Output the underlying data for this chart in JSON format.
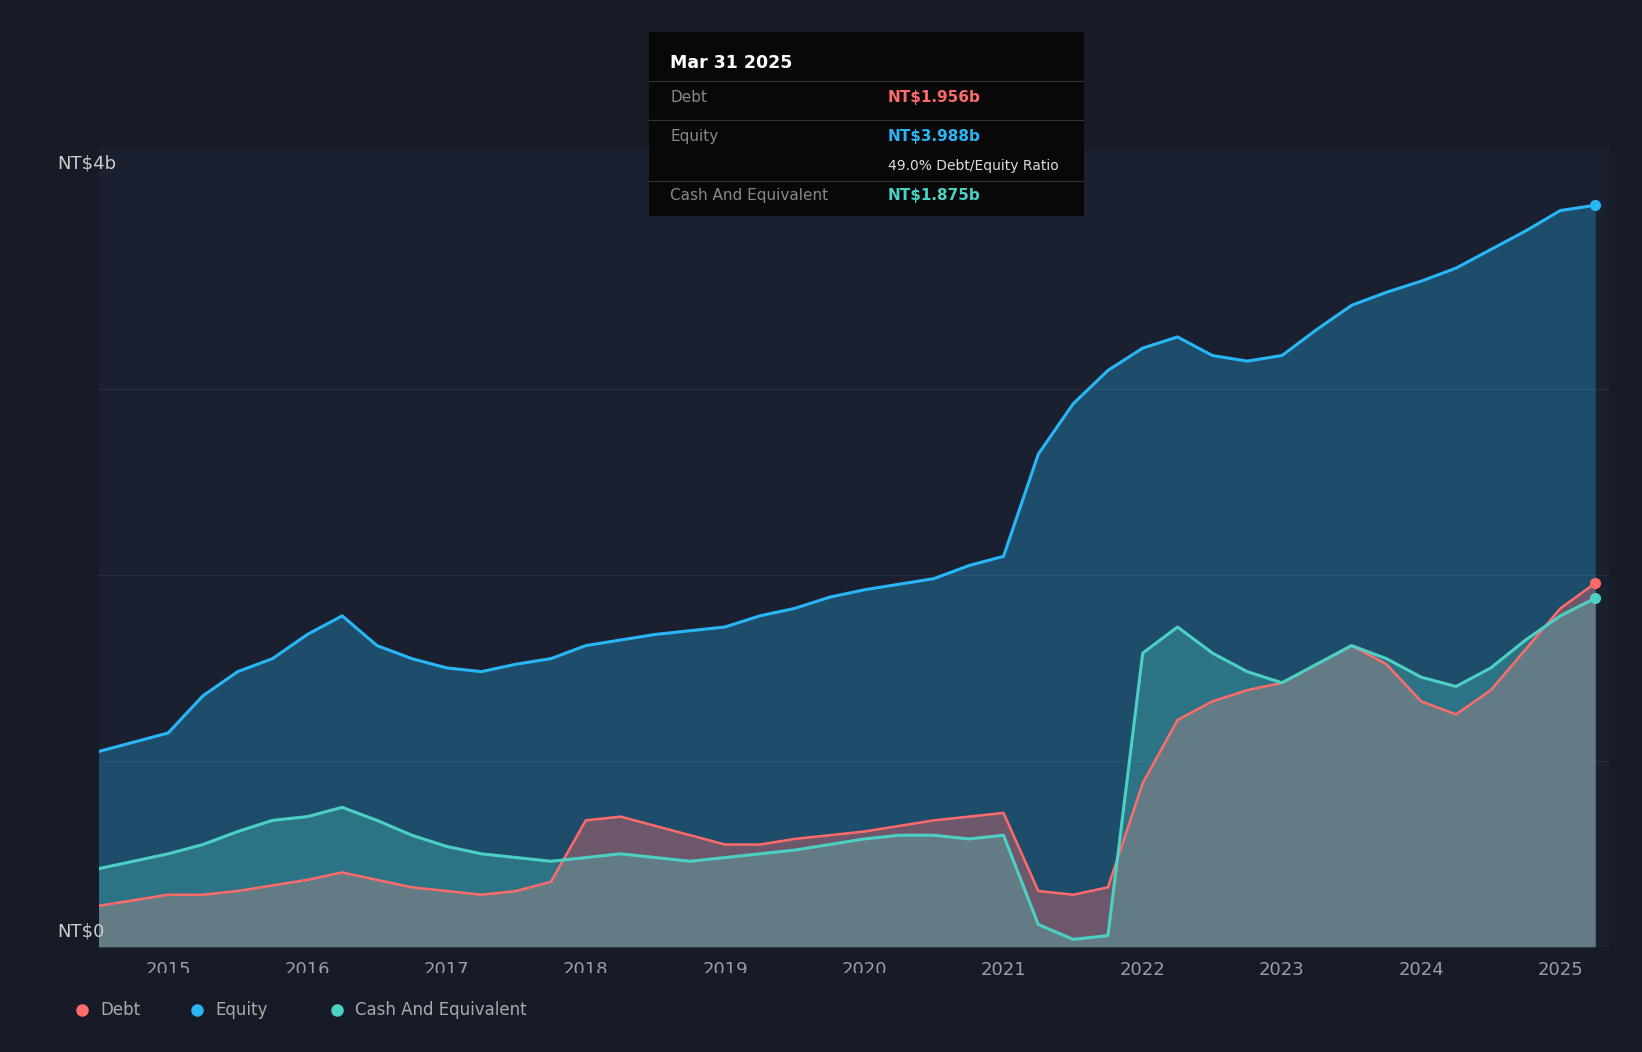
{
  "background_color": "#161b27",
  "plot_bg_color": "#1a2030",
  "ylabel_top": "NT$4b",
  "ylabel_bottom": "NT$0",
  "x_ticks": [
    2015,
    2016,
    2017,
    2018,
    2019,
    2020,
    2021,
    2022,
    2023,
    2024,
    2025
  ],
  "tooltip": {
    "date": "Mar 31 2025",
    "debt_label": "Debt",
    "debt_value": "NT$1.956b",
    "equity_label": "Equity",
    "equity_value": "NT$3.988b",
    "ratio_text": "49.0% Debt/Equity Ratio",
    "cash_label": "Cash And Equivalent",
    "cash_value": "NT$1.875b"
  },
  "debt_color": "#ff6b6b",
  "equity_color": "#29b6f6",
  "cash_color": "#4dd0c4",
  "legend": [
    {
      "label": "Debt",
      "color": "#ff6b6b"
    },
    {
      "label": "Equity",
      "color": "#29b6f6"
    },
    {
      "label": "Cash And Equivalent",
      "color": "#4dd0c4"
    }
  ],
  "time_points": [
    2014.5,
    2015.0,
    2015.25,
    2015.5,
    2015.75,
    2016.0,
    2016.25,
    2016.5,
    2016.75,
    2017.0,
    2017.25,
    2017.5,
    2017.75,
    2018.0,
    2018.25,
    2018.5,
    2018.75,
    2019.0,
    2019.25,
    2019.5,
    2019.75,
    2020.0,
    2020.25,
    2020.5,
    2020.75,
    2021.0,
    2021.25,
    2021.5,
    2021.75,
    2022.0,
    2022.25,
    2022.5,
    2022.75,
    2023.0,
    2023.25,
    2023.5,
    2023.75,
    2024.0,
    2024.25,
    2024.5,
    2024.75,
    2025.0,
    2025.25
  ],
  "equity": [
    1.05,
    1.15,
    1.35,
    1.48,
    1.55,
    1.68,
    1.78,
    1.62,
    1.55,
    1.5,
    1.48,
    1.52,
    1.55,
    1.62,
    1.65,
    1.68,
    1.7,
    1.72,
    1.78,
    1.82,
    1.88,
    1.92,
    1.95,
    1.98,
    2.05,
    2.1,
    2.65,
    2.92,
    3.1,
    3.22,
    3.28,
    3.18,
    3.15,
    3.18,
    3.32,
    3.45,
    3.52,
    3.58,
    3.65,
    3.75,
    3.85,
    3.96,
    3.988
  ],
  "debt": [
    0.22,
    0.28,
    0.28,
    0.3,
    0.33,
    0.36,
    0.4,
    0.36,
    0.32,
    0.3,
    0.28,
    0.3,
    0.35,
    0.68,
    0.7,
    0.65,
    0.6,
    0.55,
    0.55,
    0.58,
    0.6,
    0.62,
    0.65,
    0.68,
    0.7,
    0.72,
    0.3,
    0.28,
    0.32,
    0.88,
    1.22,
    1.32,
    1.38,
    1.42,
    1.52,
    1.62,
    1.52,
    1.32,
    1.25,
    1.38,
    1.6,
    1.82,
    1.956
  ],
  "cash": [
    0.42,
    0.5,
    0.55,
    0.62,
    0.68,
    0.7,
    0.75,
    0.68,
    0.6,
    0.54,
    0.5,
    0.48,
    0.46,
    0.48,
    0.5,
    0.48,
    0.46,
    0.48,
    0.5,
    0.52,
    0.55,
    0.58,
    0.6,
    0.6,
    0.58,
    0.6,
    0.12,
    0.04,
    0.06,
    1.58,
    1.72,
    1.58,
    1.48,
    1.42,
    1.52,
    1.62,
    1.55,
    1.45,
    1.4,
    1.5,
    1.65,
    1.78,
    1.875
  ],
  "ylim": [
    0,
    4.3
  ],
  "xlim": [
    2014.5,
    2025.35
  ]
}
